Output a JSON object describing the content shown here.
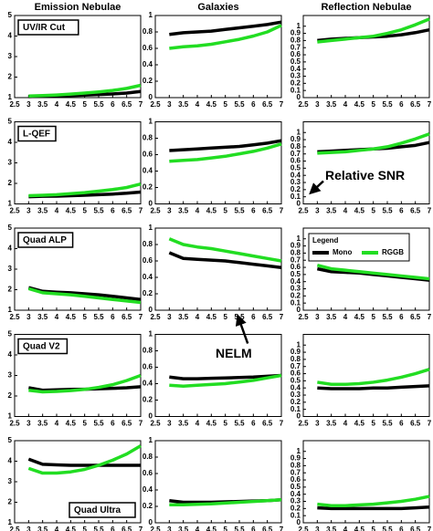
{
  "headers": [
    "Emission Nebulae",
    "Galaxies",
    "Reflection Nebulae"
  ],
  "chart_data": [
    {
      "type": "line",
      "title": "UV/IR Cut",
      "x": [
        3,
        3.5,
        4,
        4.5,
        5,
        5.5,
        6,
        6.5,
        7
      ],
      "xlim": [
        2.5,
        7
      ],
      "xticks": [
        2.5,
        3,
        3.5,
        4,
        4.5,
        5,
        5.5,
        6,
        6.5,
        7
      ],
      "ylim": [
        1,
        5
      ],
      "yticks": [
        1,
        2,
        3,
        4,
        5
      ],
      "series": [
        {
          "color": "#000000",
          "values": [
            1.05,
            1.07,
            1.08,
            1.1,
            1.12,
            1.15,
            1.18,
            1.22,
            1.3
          ]
        },
        {
          "color": "#22dd22",
          "values": [
            1.08,
            1.1,
            1.13,
            1.17,
            1.22,
            1.28,
            1.35,
            1.45,
            1.6
          ]
        }
      ]
    },
    {
      "type": "line",
      "x": [
        3,
        3.5,
        4,
        4.5,
        5,
        5.5,
        6,
        6.5,
        7
      ],
      "xlim": [
        2.5,
        7
      ],
      "xticks": [
        2.5,
        3,
        3.5,
        4,
        4.5,
        5,
        5.5,
        6,
        6.5,
        7
      ],
      "ylim": [
        0,
        1
      ],
      "yticks": [
        0,
        0.2,
        0.4,
        0.6,
        0.8,
        1
      ],
      "series": [
        {
          "color": "#000000",
          "values": [
            0.77,
            0.79,
            0.8,
            0.81,
            0.83,
            0.85,
            0.87,
            0.89,
            0.92
          ]
        },
        {
          "color": "#22dd22",
          "values": [
            0.6,
            0.62,
            0.63,
            0.65,
            0.68,
            0.71,
            0.75,
            0.8,
            0.88
          ]
        }
      ]
    },
    {
      "type": "line",
      "x": [
        3,
        3.5,
        4,
        4.5,
        5,
        5.5,
        6,
        6.5,
        7
      ],
      "xlim": [
        2.5,
        7
      ],
      "xticks": [
        2.5,
        3,
        3.5,
        4,
        4.5,
        5,
        5.5,
        6,
        6.5,
        7
      ],
      "ylim": [
        0,
        1.15
      ],
      "yticks": [
        0,
        0.1,
        0.2,
        0.3,
        0.4,
        0.5,
        0.6,
        0.7,
        0.8,
        0.9,
        1
      ],
      "series": [
        {
          "color": "#000000",
          "values": [
            0.8,
            0.82,
            0.83,
            0.84,
            0.85,
            0.86,
            0.88,
            0.91,
            0.95
          ]
        },
        {
          "color": "#22dd22",
          "values": [
            0.78,
            0.8,
            0.82,
            0.84,
            0.86,
            0.9,
            0.95,
            1.02,
            1.1
          ]
        }
      ]
    },
    {
      "type": "line",
      "title": "L-QEF",
      "x": [
        3,
        3.5,
        4,
        4.5,
        5,
        5.5,
        6,
        6.5,
        7
      ],
      "xlim": [
        2.5,
        7
      ],
      "xticks": [
        2.5,
        3,
        3.5,
        4,
        4.5,
        5,
        5.5,
        6,
        6.5,
        7
      ],
      "ylim": [
        1,
        5
      ],
      "yticks": [
        1,
        2,
        3,
        4,
        5
      ],
      "series": [
        {
          "color": "#000000",
          "values": [
            1.35,
            1.37,
            1.38,
            1.4,
            1.42,
            1.45,
            1.48,
            1.52,
            1.58
          ]
        },
        {
          "color": "#22dd22",
          "values": [
            1.4,
            1.42,
            1.45,
            1.5,
            1.55,
            1.62,
            1.7,
            1.8,
            1.97
          ]
        }
      ]
    },
    {
      "type": "line",
      "x": [
        3,
        3.5,
        4,
        4.5,
        5,
        5.5,
        6,
        6.5,
        7
      ],
      "xlim": [
        2.5,
        7
      ],
      "xticks": [
        2.5,
        3,
        3.5,
        4,
        4.5,
        5,
        5.5,
        6,
        6.5,
        7
      ],
      "ylim": [
        0,
        1
      ],
      "yticks": [
        0,
        0.2,
        0.4,
        0.6,
        0.8,
        1
      ],
      "series": [
        {
          "color": "#000000",
          "values": [
            0.65,
            0.66,
            0.67,
            0.68,
            0.69,
            0.7,
            0.72,
            0.74,
            0.77
          ]
        },
        {
          "color": "#22dd22",
          "values": [
            0.52,
            0.53,
            0.54,
            0.56,
            0.58,
            0.61,
            0.64,
            0.68,
            0.73
          ]
        }
      ]
    },
    {
      "type": "line",
      "annotation": "Relative SNR",
      "x": [
        3,
        3.5,
        4,
        4.5,
        5,
        5.5,
        6,
        6.5,
        7
      ],
      "xlim": [
        2.5,
        7
      ],
      "xticks": [
        2.5,
        3,
        3.5,
        4,
        4.5,
        5,
        5.5,
        6,
        6.5,
        7
      ],
      "ylim": [
        0,
        1.15
      ],
      "yticks": [
        0,
        0.1,
        0.2,
        0.3,
        0.4,
        0.5,
        0.6,
        0.7,
        0.8,
        0.9,
        1
      ],
      "series": [
        {
          "color": "#000000",
          "values": [
            0.73,
            0.74,
            0.75,
            0.76,
            0.77,
            0.78,
            0.8,
            0.82,
            0.86
          ]
        },
        {
          "color": "#22dd22",
          "values": [
            0.71,
            0.72,
            0.73,
            0.75,
            0.77,
            0.8,
            0.85,
            0.91,
            0.98
          ]
        }
      ]
    },
    {
      "type": "line",
      "title": "Quad ALP",
      "x": [
        3,
        3.5,
        4,
        4.5,
        5,
        5.5,
        6,
        6.5,
        7
      ],
      "xlim": [
        2.5,
        7
      ],
      "xticks": [
        2.5,
        3,
        3.5,
        4,
        4.5,
        5,
        5.5,
        6,
        6.5,
        7
      ],
      "ylim": [
        1,
        5
      ],
      "yticks": [
        1,
        2,
        3,
        4,
        5
      ],
      "series": [
        {
          "color": "#000000",
          "values": [
            2.1,
            1.92,
            1.88,
            1.85,
            1.8,
            1.75,
            1.68,
            1.6,
            1.52
          ]
        },
        {
          "color": "#22dd22",
          "values": [
            2.05,
            1.85,
            1.8,
            1.75,
            1.68,
            1.6,
            1.52,
            1.45,
            1.38
          ]
        }
      ]
    },
    {
      "type": "line",
      "x": [
        3,
        3.5,
        4,
        4.5,
        5,
        5.5,
        6,
        6.5,
        7
      ],
      "xlim": [
        2.5,
        7
      ],
      "xticks": [
        2.5,
        3,
        3.5,
        4,
        4.5,
        5,
        5.5,
        6,
        6.5,
        7
      ],
      "ylim": [
        0,
        1
      ],
      "yticks": [
        0,
        0.2,
        0.4,
        0.6,
        0.8,
        1
      ],
      "series": [
        {
          "color": "#000000",
          "values": [
            0.7,
            0.63,
            0.62,
            0.61,
            0.6,
            0.58,
            0.56,
            0.54,
            0.52
          ]
        },
        {
          "color": "#22dd22",
          "values": [
            0.87,
            0.8,
            0.77,
            0.75,
            0.72,
            0.69,
            0.66,
            0.63,
            0.6
          ]
        }
      ]
    },
    {
      "type": "line",
      "legend": "top-left",
      "legend_title": "Legend",
      "x": [
        3,
        3.5,
        4,
        4.5,
        5,
        5.5,
        6,
        6.5,
        7
      ],
      "xlim": [
        2.5,
        7
      ],
      "xticks": [
        2.5,
        3,
        3.5,
        4,
        4.5,
        5,
        5.5,
        6,
        6.5,
        7
      ],
      "ylim": [
        0,
        1.15
      ],
      "yticks": [
        0,
        0.1,
        0.2,
        0.3,
        0.4,
        0.5,
        0.6,
        0.7,
        0.8,
        0.9,
        1
      ],
      "series": [
        {
          "name": "Mono",
          "color": "#000000",
          "values": [
            0.58,
            0.54,
            0.53,
            0.52,
            0.5,
            0.48,
            0.46,
            0.44,
            0.42
          ]
        },
        {
          "name": "RGGB",
          "color": "#22dd22",
          "values": [
            0.63,
            0.58,
            0.56,
            0.54,
            0.52,
            0.5,
            0.48,
            0.46,
            0.44
          ]
        }
      ]
    },
    {
      "type": "line",
      "title": "Quad V2",
      "x": [
        3,
        3.5,
        4,
        4.5,
        5,
        5.5,
        6,
        6.5,
        7
      ],
      "xlim": [
        2.5,
        7
      ],
      "xticks": [
        2.5,
        3,
        3.5,
        4,
        4.5,
        5,
        5.5,
        6,
        6.5,
        7
      ],
      "ylim": [
        1,
        5
      ],
      "yticks": [
        1,
        2,
        3,
        4,
        5
      ],
      "series": [
        {
          "color": "#000000",
          "values": [
            2.4,
            2.28,
            2.3,
            2.32,
            2.33,
            2.35,
            2.37,
            2.4,
            2.45
          ]
        },
        {
          "color": "#22dd22",
          "values": [
            2.28,
            2.2,
            2.22,
            2.26,
            2.32,
            2.42,
            2.55,
            2.75,
            3.0
          ]
        }
      ]
    },
    {
      "type": "line",
      "annotation": "NELM",
      "x": [
        3,
        3.5,
        4,
        4.5,
        5,
        5.5,
        6,
        6.5,
        7
      ],
      "xlim": [
        2.5,
        7
      ],
      "xticks": [
        2.5,
        3,
        3.5,
        4,
        4.5,
        5,
        5.5,
        6,
        6.5,
        7
      ],
      "ylim": [
        0,
        1
      ],
      "yticks": [
        0,
        0.2,
        0.4,
        0.6,
        0.8,
        1
      ],
      "series": [
        {
          "color": "#000000",
          "values": [
            0.48,
            0.46,
            0.46,
            0.465,
            0.47,
            0.475,
            0.48,
            0.49,
            0.5
          ]
        },
        {
          "color": "#22dd22",
          "values": [
            0.38,
            0.37,
            0.38,
            0.39,
            0.4,
            0.42,
            0.44,
            0.47,
            0.5
          ]
        }
      ]
    },
    {
      "type": "line",
      "x": [
        3,
        3.5,
        4,
        4.5,
        5,
        5.5,
        6,
        6.5,
        7
      ],
      "xlim": [
        2.5,
        7
      ],
      "xticks": [
        2.5,
        3,
        3.5,
        4,
        4.5,
        5,
        5.5,
        6,
        6.5,
        7
      ],
      "ylim": [
        0,
        1.15
      ],
      "yticks": [
        0,
        0.1,
        0.2,
        0.3,
        0.4,
        0.5,
        0.6,
        0.7,
        0.8,
        0.9,
        1
      ],
      "series": [
        {
          "color": "#000000",
          "values": [
            0.4,
            0.39,
            0.39,
            0.39,
            0.4,
            0.4,
            0.41,
            0.42,
            0.43
          ]
        },
        {
          "color": "#22dd22",
          "values": [
            0.48,
            0.45,
            0.45,
            0.46,
            0.48,
            0.51,
            0.55,
            0.6,
            0.66
          ]
        }
      ]
    },
    {
      "type": "line",
      "title": "Quad Ultra",
      "x": [
        3,
        3.5,
        4,
        4.5,
        5,
        5.5,
        6,
        6.5,
        7
      ],
      "xlim": [
        2.5,
        7
      ],
      "xticks": [
        2.5,
        3,
        3.5,
        4,
        4.5,
        5,
        5.5,
        6,
        6.5,
        7
      ],
      "ylim": [
        1,
        5
      ],
      "yticks": [
        1,
        2,
        3,
        4,
        5
      ],
      "series": [
        {
          "color": "#000000",
          "values": [
            4.1,
            3.85,
            3.82,
            3.8,
            3.8,
            3.8,
            3.8,
            3.8,
            3.8
          ]
        },
        {
          "color": "#22dd22",
          "values": [
            3.65,
            3.42,
            3.42,
            3.48,
            3.6,
            3.8,
            4.05,
            4.35,
            4.75
          ]
        }
      ]
    },
    {
      "type": "line",
      "x": [
        3,
        3.5,
        4,
        4.5,
        5,
        5.5,
        6,
        6.5,
        7
      ],
      "xlim": [
        2.5,
        7
      ],
      "xticks": [
        2.5,
        3,
        3.5,
        4,
        4.5,
        5,
        5.5,
        6,
        6.5,
        7
      ],
      "ylim": [
        0,
        1
      ],
      "yticks": [
        0,
        0.2,
        0.4,
        0.6,
        0.8,
        1
      ],
      "series": [
        {
          "color": "#000000",
          "values": [
            0.27,
            0.25,
            0.25,
            0.25,
            0.255,
            0.26,
            0.265,
            0.27,
            0.28
          ]
        },
        {
          "color": "#22dd22",
          "values": [
            0.22,
            0.22,
            0.225,
            0.23,
            0.24,
            0.25,
            0.26,
            0.27,
            0.28
          ]
        }
      ]
    },
    {
      "type": "line",
      "x": [
        3,
        3.5,
        4,
        4.5,
        5,
        5.5,
        6,
        6.5,
        7
      ],
      "xlim": [
        2.5,
        7
      ],
      "xticks": [
        2.5,
        3,
        3.5,
        4,
        4.5,
        5,
        5.5,
        6,
        6.5,
        7
      ],
      "ylim": [
        0,
        1.15
      ],
      "yticks": [
        0,
        0.1,
        0.2,
        0.3,
        0.4,
        0.5,
        0.6,
        0.7,
        0.8,
        0.9,
        1
      ],
      "series": [
        {
          "color": "#000000",
          "values": [
            0.21,
            0.2,
            0.2,
            0.2,
            0.2,
            0.2,
            0.2,
            0.21,
            0.22
          ]
        },
        {
          "color": "#22dd22",
          "values": [
            0.26,
            0.24,
            0.24,
            0.25,
            0.26,
            0.28,
            0.3,
            0.33,
            0.37
          ]
        }
      ]
    }
  ]
}
